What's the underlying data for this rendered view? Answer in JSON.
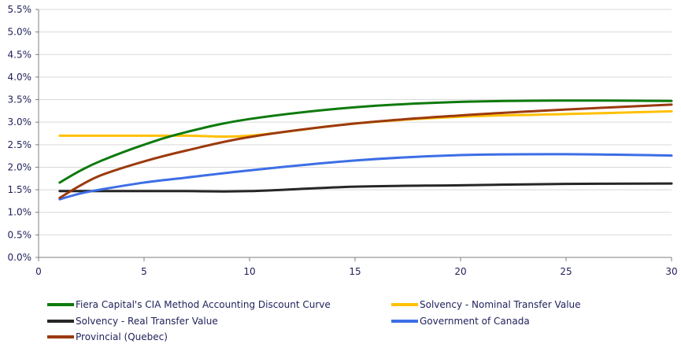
{
  "chart_data": {
    "type": "line",
    "x": [
      1,
      2,
      3,
      5,
      7,
      10,
      15,
      20,
      25,
      30
    ],
    "xlim": [
      0,
      30
    ],
    "xticks": [
      0,
      5,
      10,
      15,
      20,
      25,
      30
    ],
    "ylim": [
      0,
      5.5
    ],
    "yticks": [
      "0.0%",
      "0.5%",
      "1.0%",
      "1.5%",
      "2.0%",
      "2.5%",
      "3.0%",
      "3.5%",
      "4.0%",
      "4.5%",
      "5.0%",
      "5.5%"
    ],
    "grid": "horizontal",
    "legend_position": "bottom",
    "series": [
      {
        "name": "Fiera Capital's CIA Method Accounting Discount Curve",
        "color": "#0e7a0d",
        "values": [
          1.66,
          1.93,
          2.15,
          2.5,
          2.78,
          3.07,
          3.33,
          3.45,
          3.48,
          3.47
        ]
      },
      {
        "name": "Solvency - Nominal Transfer Value",
        "color": "#ffc000",
        "values": [
          2.7,
          2.7,
          2.7,
          2.7,
          2.7,
          2.7,
          2.97,
          3.12,
          3.18,
          3.24
        ]
      },
      {
        "name": "Solvency - Real Transfer Value",
        "color": "#262626",
        "values": [
          1.47,
          1.47,
          1.47,
          1.47,
          1.47,
          1.47,
          1.57,
          1.6,
          1.63,
          1.64
        ]
      },
      {
        "name": "Government of Canada",
        "color": "#3d6ee6",
        "values": [
          1.29,
          1.42,
          1.51,
          1.66,
          1.77,
          1.93,
          2.15,
          2.27,
          2.29,
          2.26
        ]
      },
      {
        "name": "Provincial (Quebec)",
        "color": "#9b3a0e",
        "values": [
          1.32,
          1.6,
          1.83,
          2.13,
          2.37,
          2.67,
          2.97,
          3.15,
          3.28,
          3.39
        ]
      }
    ]
  }
}
